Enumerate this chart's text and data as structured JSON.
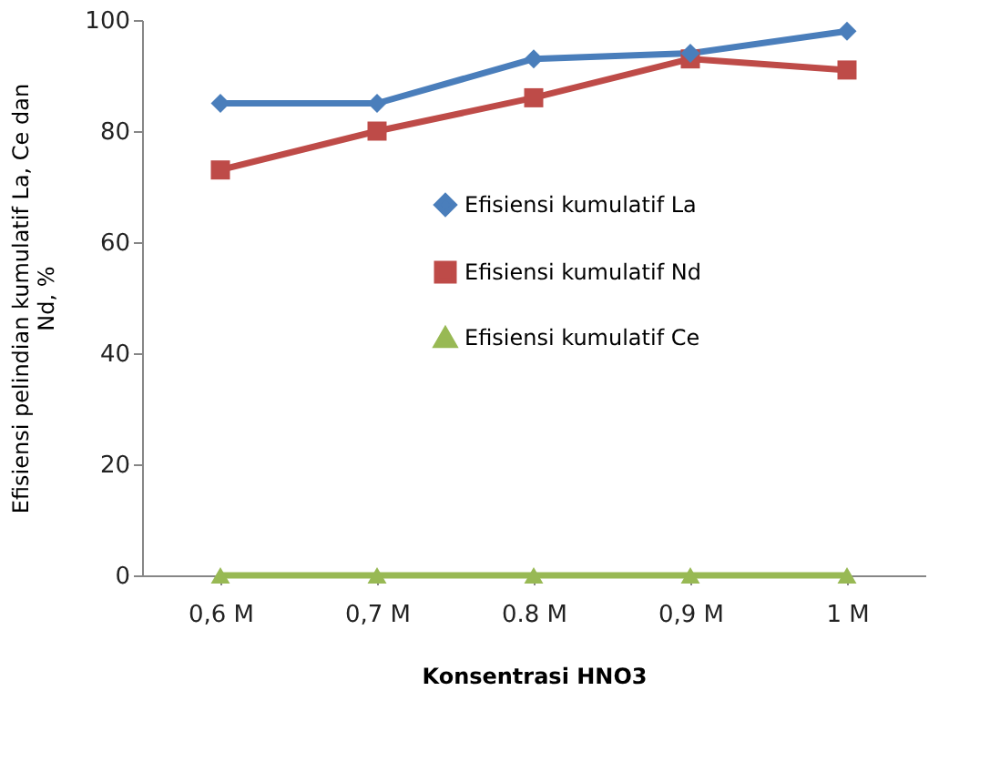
{
  "chart_data": {
    "type": "line",
    "xlabel": "Konsentrasi HNO3",
    "ylabel": "Efisiensi pelindian kumulatif La, Ce dan\nNd, %",
    "categories": [
      "0,6 M",
      "0,7 M",
      "0.8 M",
      "0,9 M",
      "1 M"
    ],
    "ylim": [
      0,
      100
    ],
    "yticks": [
      0,
      20,
      40,
      60,
      80,
      100
    ],
    "grid": false,
    "legend": "right",
    "series": [
      {
        "name": "Efisiensi kumulatif La",
        "color": "#4a7ebb",
        "marker": "diamond",
        "values": [
          85,
          85,
          93,
          94,
          98
        ]
      },
      {
        "name": "Efisiensi kumulatif Nd",
        "color": "#be4b48",
        "marker": "square",
        "values": [
          73,
          80,
          86,
          93,
          91
        ]
      },
      {
        "name": "Efisiensi kumulatif Ce",
        "color": "#98b954",
        "marker": "triangle",
        "values": [
          0,
          0,
          0,
          0,
          0
        ]
      }
    ]
  }
}
